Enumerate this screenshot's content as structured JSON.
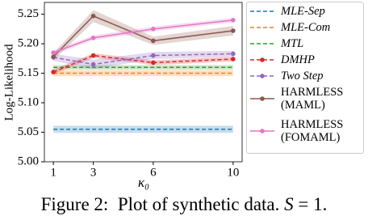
{
  "chart_data": {
    "type": "line",
    "ylabel": "Log-Likelihood",
    "xlabel": "κ₀",
    "x": [
      1,
      3,
      6,
      10
    ],
    "xlim": [
      0.55,
      10.45
    ],
    "xticks": [
      1,
      3,
      6,
      10
    ],
    "ylim": [
      5.0,
      5.27
    ],
    "yticks": [
      {
        "value": 5.0,
        "label": "5.00"
      },
      {
        "value": 5.05,
        "label": "5.05"
      },
      {
        "value": 5.1,
        "label": "5.10"
      },
      {
        "value": 5.15,
        "label": "5.15"
      },
      {
        "value": 5.2,
        "label": "5.20"
      },
      {
        "value": 5.25,
        "label": "5.25"
      }
    ],
    "series": [
      {
        "name": "MLE-Sep",
        "color": "#1f77b4",
        "dashed": true,
        "marker": false,
        "italic": true,
        "values": [
          5.055,
          5.055,
          5.055,
          5.055
        ],
        "error": [
          0.006,
          0.006,
          0.006,
          0.006
        ]
      },
      {
        "name": "MLE-Com",
        "color": "#ff7f0e",
        "dashed": true,
        "marker": false,
        "italic": true,
        "values": [
          5.15,
          5.15,
          5.15,
          5.15
        ],
        "error": [
          0.005,
          0.005,
          0.005,
          0.005
        ]
      },
      {
        "name": "MTL",
        "color": "#2ca02c",
        "dashed": true,
        "marker": false,
        "italic": true,
        "values": [
          5.16,
          5.16,
          5.16,
          5.16
        ],
        "error": [
          0.004,
          0.004,
          0.004,
          0.004
        ]
      },
      {
        "name": "DMHP",
        "color": "#d62728",
        "dashed": true,
        "marker": true,
        "italic": true,
        "values": [
          5.152,
          5.18,
          5.168,
          5.174
        ],
        "error": [
          0.004,
          0.004,
          0.004,
          0.004
        ]
      },
      {
        "name": "Two Step",
        "color": "#9467bd",
        "dashed": true,
        "marker": true,
        "italic": true,
        "values": [
          5.177,
          5.165,
          5.18,
          5.183
        ],
        "error": [
          0.006,
          0.008,
          0.006,
          0.005
        ]
      },
      {
        "name": "HARMLESS\n(MAML)",
        "color": "#8c564b",
        "dashed": false,
        "marker": true,
        "italic": false,
        "values": [
          5.178,
          5.247,
          5.205,
          5.222
        ],
        "error": [
          0.006,
          0.01,
          0.007,
          0.008
        ]
      },
      {
        "name": "HARMLESS\n(FOMAML)",
        "color": "#e377c2",
        "dashed": false,
        "marker": true,
        "italic": false,
        "values": [
          5.185,
          5.21,
          5.225,
          5.24
        ],
        "error": [
          0.004,
          0.004,
          0.004,
          0.004
        ]
      }
    ]
  },
  "caption": {
    "label": "Figure 2:",
    "text": "Plot of synthetic data.",
    "math_var": "S",
    "math_rest": "= 1."
  }
}
